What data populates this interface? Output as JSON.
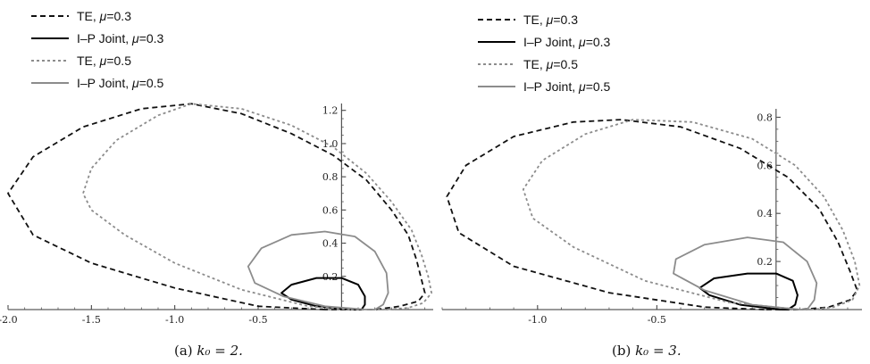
{
  "chart_data": [
    {
      "type": "line",
      "caption": {
        "label": "(a)",
        "math": "k₀ = 2."
      },
      "xlim": [
        -2.0,
        0.55
      ],
      "ylim": [
        0.0,
        1.22
      ],
      "xticks": [
        -2.0,
        -1.5,
        -1.0,
        -0.5
      ],
      "xtick_labels": [
        "-2.0",
        "-1.5",
        "-1.0",
        "-0.5"
      ],
      "yticks": [
        0.2,
        0.4,
        0.6,
        0.8,
        1.0,
        1.2
      ],
      "ytick_labels": [
        "0.2",
        "0.4",
        "0.6",
        "0.8",
        "1.0",
        "1.2"
      ],
      "legend": {
        "placement": "top-left"
      },
      "series": [
        {
          "name": "TE, μ=0.3",
          "style": "dashed",
          "color": "#111111",
          "points": [
            [
              -0.1,
              0
            ],
            [
              -0.5,
              0.02
            ],
            [
              -1.0,
              0.13
            ],
            [
              -1.5,
              0.28
            ],
            [
              -1.85,
              0.45
            ],
            [
              -2.0,
              0.7
            ],
            [
              -1.85,
              0.92
            ],
            [
              -1.55,
              1.1
            ],
            [
              -1.2,
              1.21
            ],
            [
              -0.9,
              1.24
            ],
            [
              -0.6,
              1.18
            ],
            [
              -0.3,
              1.06
            ],
            [
              -0.05,
              0.93
            ],
            [
              0.15,
              0.78
            ],
            [
              0.3,
              0.6
            ],
            [
              0.4,
              0.45
            ],
            [
              0.45,
              0.3
            ],
            [
              0.48,
              0.18
            ],
            [
              0.5,
              0.1
            ],
            [
              0.46,
              0.05
            ],
            [
              0.35,
              0.02
            ],
            [
              0.2,
              0
            ],
            [
              -0.1,
              0
            ]
          ]
        },
        {
          "name": "I–P Joint, μ=0.3",
          "style": "solid",
          "color": "#000000",
          "points": [
            [
              0.05,
              0
            ],
            [
              -0.15,
              0.02
            ],
            [
              -0.3,
              0.06
            ],
            [
              -0.36,
              0.1
            ],
            [
              -0.3,
              0.15
            ],
            [
              -0.15,
              0.19
            ],
            [
              0.0,
              0.19
            ],
            [
              0.1,
              0.15
            ],
            [
              0.14,
              0.08
            ],
            [
              0.14,
              0.03
            ],
            [
              0.12,
              0
            ],
            [
              0.05,
              0
            ]
          ]
        },
        {
          "name": "TE, μ=0.5",
          "style": "dotted",
          "color": "#8c8c8c",
          "points": [
            [
              0.05,
              0
            ],
            [
              -0.2,
              0.02
            ],
            [
              -0.6,
              0.12
            ],
            [
              -1.0,
              0.28
            ],
            [
              -1.3,
              0.45
            ],
            [
              -1.5,
              0.6
            ],
            [
              -1.55,
              0.7
            ],
            [
              -1.5,
              0.85
            ],
            [
              -1.35,
              1.02
            ],
            [
              -1.1,
              1.17
            ],
            [
              -0.9,
              1.24
            ],
            [
              -0.6,
              1.21
            ],
            [
              -0.3,
              1.11
            ],
            [
              -0.05,
              0.98
            ],
            [
              0.15,
              0.82
            ],
            [
              0.3,
              0.65
            ],
            [
              0.42,
              0.48
            ],
            [
              0.48,
              0.33
            ],
            [
              0.52,
              0.2
            ],
            [
              0.54,
              0.1
            ],
            [
              0.49,
              0.04
            ],
            [
              0.4,
              0.01
            ],
            [
              0.25,
              0
            ],
            [
              0.05,
              0
            ]
          ]
        },
        {
          "name": "I–P Joint, μ=0.5",
          "style": "solid",
          "color": "#8c8c8c",
          "points": [
            [
              0.15,
              0
            ],
            [
              -0.1,
              0.02
            ],
            [
              -0.35,
              0.08
            ],
            [
              -0.52,
              0.16
            ],
            [
              -0.56,
              0.26
            ],
            [
              -0.48,
              0.37
            ],
            [
              -0.3,
              0.45
            ],
            [
              -0.1,
              0.47
            ],
            [
              0.08,
              0.44
            ],
            [
              0.2,
              0.35
            ],
            [
              0.27,
              0.22
            ],
            [
              0.28,
              0.1
            ],
            [
              0.25,
              0.03
            ],
            [
              0.2,
              0
            ],
            [
              0.15,
              0
            ]
          ]
        }
      ]
    },
    {
      "type": "line",
      "caption": {
        "label": "(b)",
        "math": "k₀ = 3."
      },
      "xlim": [
        -1.4,
        0.36
      ],
      "ylim": [
        0.0,
        0.82
      ],
      "xticks": [
        -1.0,
        -0.5
      ],
      "xtick_labels": [
        "-1.0",
        "-0.5"
      ],
      "yticks": [
        0.2,
        0.4,
        0.6,
        0.8
      ],
      "ytick_labels": [
        "0.2",
        "0.4",
        "0.6",
        "0.8"
      ],
      "legend": {
        "placement": "top-left"
      },
      "series": [
        {
          "name": "TE, μ=0.3",
          "style": "dashed",
          "color": "#111111",
          "points": [
            [
              -0.05,
              0
            ],
            [
              -0.3,
              0.01
            ],
            [
              -0.7,
              0.07
            ],
            [
              -1.1,
              0.18
            ],
            [
              -1.33,
              0.32
            ],
            [
              -1.38,
              0.47
            ],
            [
              -1.3,
              0.6
            ],
            [
              -1.1,
              0.72
            ],
            [
              -0.85,
              0.78
            ],
            [
              -0.65,
              0.79
            ],
            [
              -0.4,
              0.76
            ],
            [
              -0.15,
              0.67
            ],
            [
              0.05,
              0.55
            ],
            [
              0.18,
              0.42
            ],
            [
              0.26,
              0.28
            ],
            [
              0.31,
              0.16
            ],
            [
              0.34,
              0.08
            ],
            [
              0.31,
              0.04
            ],
            [
              0.22,
              0.01
            ],
            [
              0.1,
              0
            ],
            [
              -0.05,
              0
            ]
          ]
        },
        {
          "name": "I–P Joint, μ=0.3",
          "style": "solid",
          "color": "#000000",
          "points": [
            [
              0.02,
              0
            ],
            [
              -0.15,
              0.02
            ],
            [
              -0.28,
              0.06
            ],
            [
              -0.32,
              0.09
            ],
            [
              -0.26,
              0.13
            ],
            [
              -0.12,
              0.15
            ],
            [
              0.0,
              0.15
            ],
            [
              0.07,
              0.12
            ],
            [
              0.09,
              0.06
            ],
            [
              0.08,
              0.02
            ],
            [
              0.05,
              0
            ],
            [
              0.02,
              0
            ]
          ]
        },
        {
          "name": "TE, μ=0.5",
          "style": "dotted",
          "color": "#8c8c8c",
          "points": [
            [
              0.1,
              0
            ],
            [
              -0.2,
              0.03
            ],
            [
              -0.55,
              0.12
            ],
            [
              -0.85,
              0.26
            ],
            [
              -1.02,
              0.38
            ],
            [
              -1.06,
              0.5
            ],
            [
              -0.98,
              0.62
            ],
            [
              -0.8,
              0.73
            ],
            [
              -0.6,
              0.79
            ],
            [
              -0.35,
              0.78
            ],
            [
              -0.1,
              0.71
            ],
            [
              0.08,
              0.6
            ],
            [
              0.2,
              0.47
            ],
            [
              0.28,
              0.33
            ],
            [
              0.33,
              0.2
            ],
            [
              0.35,
              0.1
            ],
            [
              0.32,
              0.04
            ],
            [
              0.24,
              0.01
            ],
            [
              0.15,
              0
            ],
            [
              0.1,
              0
            ]
          ]
        },
        {
          "name": "I–P Joint, μ=0.5",
          "style": "solid",
          "color": "#8c8c8c",
          "points": [
            [
              0.1,
              0
            ],
            [
              -0.1,
              0.02
            ],
            [
              -0.3,
              0.08
            ],
            [
              -0.43,
              0.15
            ],
            [
              -0.42,
              0.21
            ],
            [
              -0.3,
              0.27
            ],
            [
              -0.12,
              0.3
            ],
            [
              0.03,
              0.28
            ],
            [
              0.13,
              0.2
            ],
            [
              0.17,
              0.11
            ],
            [
              0.16,
              0.04
            ],
            [
              0.13,
              0
            ],
            [
              0.1,
              0
            ]
          ]
        }
      ]
    }
  ]
}
